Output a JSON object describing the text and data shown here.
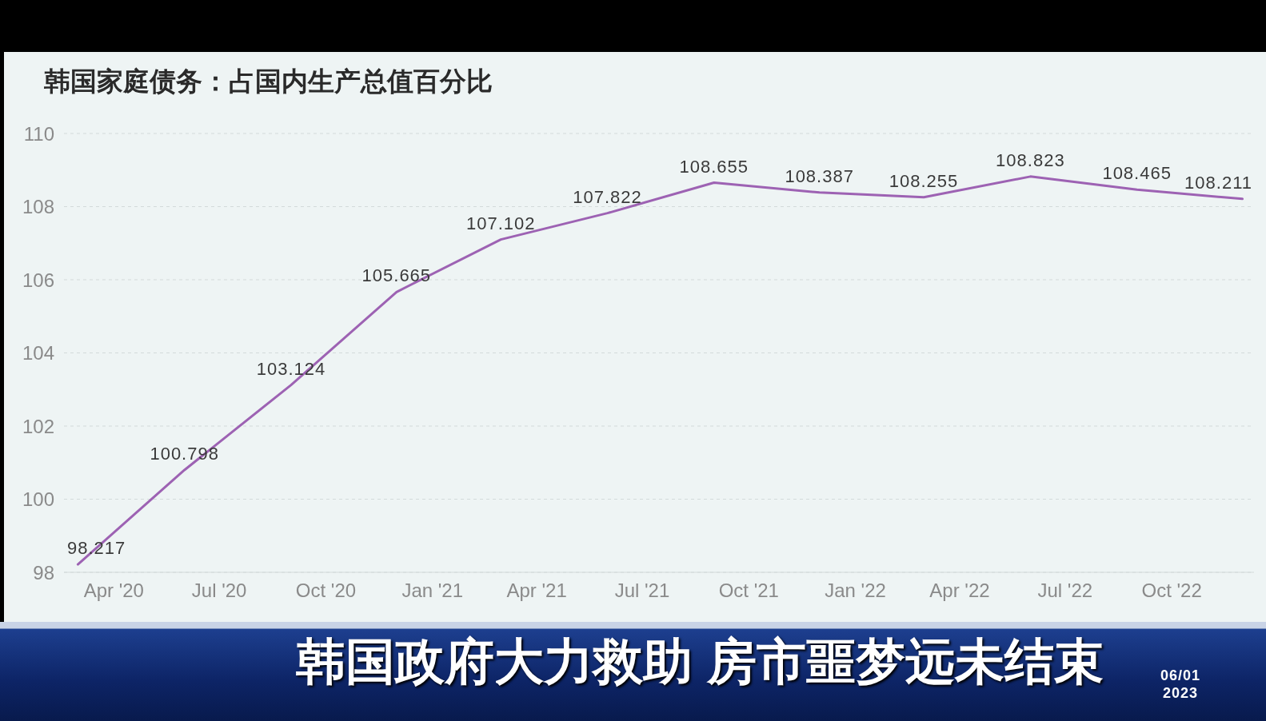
{
  "chart_data": {
    "type": "line",
    "title": "韩国家庭债务：占国内生产总值百分比",
    "annotations": [
      "韩国政府大力救助 房市噩梦远未结束",
      "06/01 2023"
    ],
    "x": [
      "2020-03",
      "2020-06",
      "2020-09",
      "2020-12",
      "2021-03",
      "2021-06",
      "2021-09",
      "2021-12",
      "2022-03",
      "2022-06",
      "2022-09",
      "2022-12"
    ],
    "values": [
      98.217,
      100.798,
      103.124,
      105.665,
      107.102,
      107.822,
      108.655,
      108.387,
      108.255,
      108.823,
      108.465,
      108.211
    ],
    "color": "#9d62b3",
    "xlim": [
      "2020-02-18",
      "2022-12-11"
    ],
    "xticks": [
      {
        "value": "2020-04",
        "label": "Apr '20"
      },
      {
        "value": "2020-07",
        "label": "Jul '20"
      },
      {
        "value": "2020-10",
        "label": "Oct '20"
      },
      {
        "value": "2021-01",
        "label": "Jan '21"
      },
      {
        "value": "2021-04",
        "label": "Apr '21"
      },
      {
        "value": "2021-07",
        "label": "Jul '21"
      },
      {
        "value": "2021-10",
        "label": "Oct '21"
      },
      {
        "value": "2022-01",
        "label": "Jan '22"
      },
      {
        "value": "2022-04",
        "label": "Apr '22"
      },
      {
        "value": "2022-07",
        "label": "Jul '22"
      },
      {
        "value": "2022-10",
        "label": "Oct '22"
      }
    ],
    "ylim": [
      98,
      110
    ],
    "yticks": [
      98,
      100,
      102,
      104,
      106,
      108,
      110
    ],
    "grid": "y",
    "data_labels": true,
    "line_style": "solid"
  }
}
